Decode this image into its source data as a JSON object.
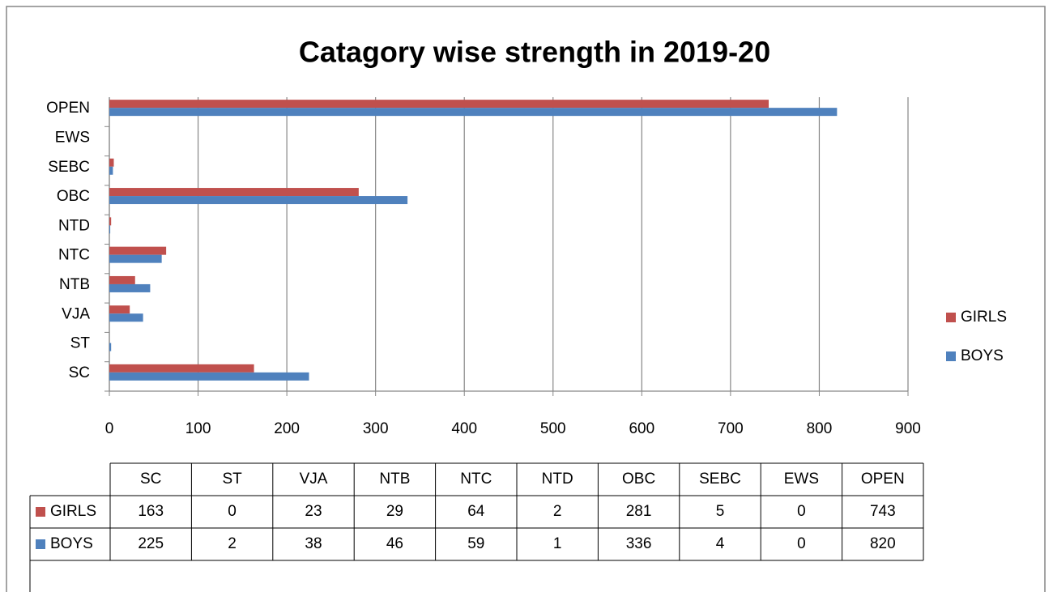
{
  "chart_data": {
    "type": "barh",
    "title": "Catagory wise strength in 2019-20",
    "categories": [
      "SC",
      "ST",
      "VJA",
      "NTB",
      "NTC",
      "NTD",
      "OBC",
      "SEBC",
      "EWS",
      "OPEN"
    ],
    "series": [
      {
        "name": "GIRLS",
        "color": "#c0504d",
        "values": [
          163,
          0,
          23,
          29,
          64,
          2,
          281,
          5,
          0,
          743
        ]
      },
      {
        "name": "BOYS",
        "color": "#4f81bd",
        "values": [
          225,
          2,
          38,
          46,
          59,
          1,
          336,
          4,
          0,
          820
        ]
      }
    ],
    "xlim": [
      0,
      900
    ],
    "xticks": [
      0,
      100,
      200,
      300,
      400,
      500,
      600,
      700,
      800,
      900
    ],
    "grid": true,
    "legend": "right",
    "data_table": true
  }
}
